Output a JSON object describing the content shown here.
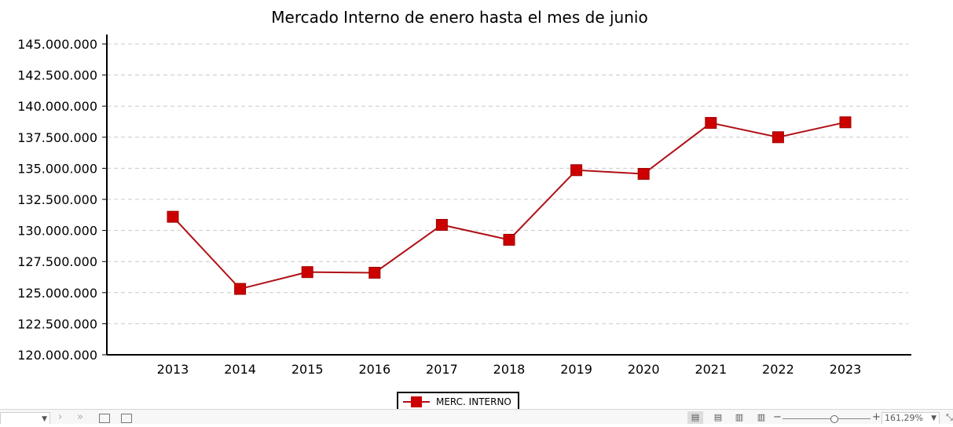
{
  "chart_data": {
    "type": "line",
    "title": "Mercado Interno de enero hasta el mes de junio",
    "xlabel": "",
    "ylabel": "",
    "categories": [
      "2013",
      "2014",
      "2015",
      "2016",
      "2017",
      "2018",
      "2019",
      "2020",
      "2021",
      "2022",
      "2023"
    ],
    "series": [
      {
        "name": "MERC. INTERNO",
        "values": [
          131100000,
          125300000,
          126650000,
          126600000,
          130450000,
          129250000,
          134850000,
          134550000,
          138650000,
          137500000,
          138700000
        ]
      }
    ],
    "ylim": [
      120000000,
      145000000
    ],
    "yticks": [
      120000000,
      122500000,
      125000000,
      127500000,
      130000000,
      132500000,
      135000000,
      137500000,
      140000000,
      142500000,
      145000000
    ],
    "ytick_labels": [
      "120.000.000",
      "122.500.000",
      "125.000.000",
      "127.500.000",
      "130.000.000",
      "132.500.000",
      "135.000.000",
      "137.500.000",
      "140.000.000",
      "142.500.000",
      "145.000.000"
    ],
    "grid": true,
    "legend_position": "bottom",
    "colors": {
      "line": "#b01016",
      "marker": "#cc0000"
    },
    "marker": "square"
  },
  "legend": {
    "label": "MERC. INTERNO"
  },
  "status_bar": {
    "zoom": "161,29%",
    "icons": [
      "chevron-right-icon",
      "double-chevron-right-icon",
      "insert-sheet-icon",
      "duplicate-sheet-icon",
      "normal-view-icon",
      "web-view-icon",
      "two-page-view-icon",
      "book-view-icon",
      "zoom-out-icon",
      "zoom-in-icon",
      "resize-icon"
    ]
  }
}
